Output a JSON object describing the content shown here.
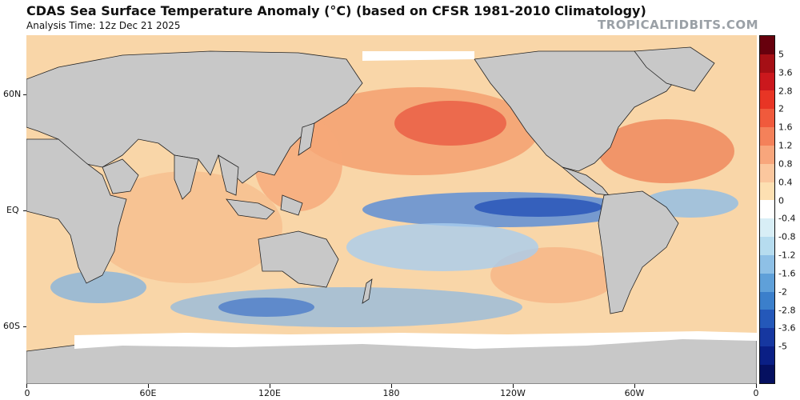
{
  "header": {
    "title": "CDAS Sea Surface Temperature Anomaly (°C) (based on CFSR 1981-2010 Climatology)",
    "subtitle": "Analysis Time: 12z Dec 21 2025",
    "brand": "TROPICALTIDBITS.COM"
  },
  "axes": {
    "x_labels": [
      "0",
      "60E",
      "120E",
      "180",
      "120W",
      "60W",
      "0"
    ],
    "y_labels": [
      "60N",
      "EQ",
      "60S"
    ]
  },
  "colorbar": {
    "labels": [
      "5",
      "3.6",
      "2.8",
      "2",
      "1.6",
      "1.2",
      "0.8",
      "0.4",
      "0",
      "-0.4",
      "-0.8",
      "-1.2",
      "-1.6",
      "-2",
      "-2.8",
      "-3.6",
      "-5"
    ],
    "colors": [
      "#67000d",
      "#a50f15",
      "#cb181d",
      "#e83525",
      "#f05a3c",
      "#f4815a",
      "#f8a67c",
      "#fbc79e",
      "#fde0b2",
      "#ffffff",
      "#d8eef6",
      "#b6dcef",
      "#8ec0e6",
      "#5fa0d9",
      "#3b7fcb",
      "#2458b9",
      "#1637a0",
      "#0a1f85",
      "#051060"
    ],
    "ocean_colors": {
      "warm": "#f7c28c",
      "cool": "#a9d0ee",
      "land": "#c8c8c8",
      "ice": "#ffffff"
    }
  },
  "map": {
    "projection": "cylindrical-equidistant",
    "features": [
      "land",
      "country-borders",
      "us-state-borders",
      "sea-ice"
    ]
  }
}
